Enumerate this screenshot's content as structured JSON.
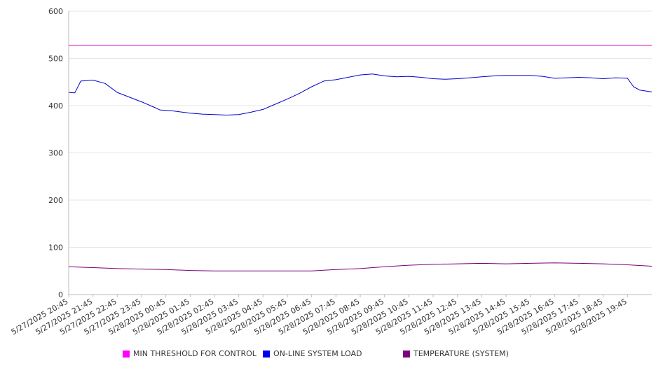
{
  "chart_data": {
    "type": "line",
    "title": "",
    "xlabel": "",
    "ylabel": "",
    "ylim": [
      0,
      600
    ],
    "yticks": [
      0,
      100,
      200,
      300,
      400,
      500,
      600
    ],
    "grid": true,
    "legend_position": "bottom",
    "x_start": "5/27/2025 20:45",
    "x_end": "5/28/2025 20:45",
    "x_tick_labels": [
      "5/27/2025 20:45",
      "5/27/2025 21:45",
      "5/27/2025 22:45",
      "5/27/2025 23:45",
      "5/28/2025 00:45",
      "5/28/2025 01:45",
      "5/28/2025 02:45",
      "5/28/2025 03:45",
      "5/28/2025 04:45",
      "5/28/2025 05:45",
      "5/28/2025 06:45",
      "5/28/2025 07:45",
      "5/28/2025 08:45",
      "5/28/2025 09:45",
      "5/28/2025 10:45",
      "5/28/2025 11:45",
      "5/28/2025 12:45",
      "5/28/2025 13:45",
      "5/28/2025 14:45",
      "5/28/2025 15:45",
      "5/28/2025 16:45",
      "5/28/2025 17:45",
      "5/28/2025 18:45",
      "5/28/2025 19:45"
    ],
    "series": [
      {
        "name": "MIN THRESHOLD FOR CONTROL",
        "color": "#cc00cc",
        "points": [
          [
            "5/27/2025 20:45",
            528
          ],
          [
            "5/28/2025 20:45",
            528
          ]
        ]
      },
      {
        "name": "ON-LINE SYSTEM LOAD",
        "color": "#0000cc",
        "points": [
          [
            "5/27/2025 20:45",
            428
          ],
          [
            "5/27/2025 21:00",
            427
          ],
          [
            "5/27/2025 21:15",
            452
          ],
          [
            "5/27/2025 21:45",
            454
          ],
          [
            "5/27/2025 22:15",
            447
          ],
          [
            "5/27/2025 22:45",
            428
          ],
          [
            "5/27/2025 23:15",
            418
          ],
          [
            "5/27/2025 23:45",
            408
          ],
          [
            "5/28/2025 00:15",
            397
          ],
          [
            "5/28/2025 00:30",
            391
          ],
          [
            "5/28/2025 01:00",
            389
          ],
          [
            "5/28/2025 01:45",
            384
          ],
          [
            "5/28/2025 02:15",
            382
          ],
          [
            "5/28/2025 02:45",
            381
          ],
          [
            "5/28/2025 03:15",
            380
          ],
          [
            "5/28/2025 03:45",
            381
          ],
          [
            "5/28/2025 04:15",
            386
          ],
          [
            "5/28/2025 04:45",
            392
          ],
          [
            "5/28/2025 05:15",
            403
          ],
          [
            "5/28/2025 05:45",
            414
          ],
          [
            "5/28/2025 06:15",
            426
          ],
          [
            "5/28/2025 06:45",
            440
          ],
          [
            "5/28/2025 07:15",
            452
          ],
          [
            "5/28/2025 07:45",
            455
          ],
          [
            "5/28/2025 08:15",
            460
          ],
          [
            "5/28/2025 08:45",
            465
          ],
          [
            "5/28/2025 09:15",
            467
          ],
          [
            "5/28/2025 09:45",
            463
          ],
          [
            "5/28/2025 10:15",
            461
          ],
          [
            "5/28/2025 10:45",
            462
          ],
          [
            "5/28/2025 11:15",
            460
          ],
          [
            "5/28/2025 11:45",
            457
          ],
          [
            "5/28/2025 12:15",
            456
          ],
          [
            "5/28/2025 12:45",
            457
          ],
          [
            "5/28/2025 13:15",
            459
          ],
          [
            "5/28/2025 13:45",
            461
          ],
          [
            "5/28/2025 14:15",
            463
          ],
          [
            "5/28/2025 14:45",
            464
          ],
          [
            "5/28/2025 15:15",
            464
          ],
          [
            "5/28/2025 15:45",
            464
          ],
          [
            "5/28/2025 16:15",
            462
          ],
          [
            "5/28/2025 16:45",
            458
          ],
          [
            "5/28/2025 17:15",
            459
          ],
          [
            "5/28/2025 17:45",
            460
          ],
          [
            "5/28/2025 18:15",
            459
          ],
          [
            "5/28/2025 18:45",
            457
          ],
          [
            "5/28/2025 19:15",
            459
          ],
          [
            "5/28/2025 19:45",
            458
          ],
          [
            "5/28/2025 20:00",
            440
          ],
          [
            "5/28/2025 20:15",
            433
          ],
          [
            "5/28/2025 20:45",
            429
          ]
        ]
      },
      {
        "name": "TEMPERATURE (SYSTEM)",
        "color": "#7a0077",
        "points": [
          [
            "5/27/2025 20:45",
            59
          ],
          [
            "5/27/2025 21:45",
            57
          ],
          [
            "5/27/2025 22:45",
            55
          ],
          [
            "5/27/2025 23:45",
            54
          ],
          [
            "5/28/2025 00:45",
            53
          ],
          [
            "5/28/2025 01:45",
            51
          ],
          [
            "5/28/2025 02:45",
            50
          ],
          [
            "5/28/2025 03:45",
            50
          ],
          [
            "5/28/2025 04:45",
            50
          ],
          [
            "5/28/2025 05:45",
            50
          ],
          [
            "5/28/2025 06:45",
            50
          ],
          [
            "5/28/2025 07:45",
            53
          ],
          [
            "5/28/2025 08:45",
            55
          ],
          [
            "5/28/2025 09:45",
            59
          ],
          [
            "5/28/2025 10:45",
            62
          ],
          [
            "5/28/2025 11:45",
            64
          ],
          [
            "5/28/2025 12:45",
            65
          ],
          [
            "5/28/2025 13:45",
            66
          ],
          [
            "5/28/2025 14:45",
            65
          ],
          [
            "5/28/2025 15:45",
            66
          ],
          [
            "5/28/2025 16:45",
            67
          ],
          [
            "5/28/2025 17:45",
            66
          ],
          [
            "5/28/2025 18:45",
            65
          ],
          [
            "5/28/2025 19:45",
            63
          ],
          [
            "5/28/2025 20:45",
            60
          ]
        ]
      }
    ]
  }
}
